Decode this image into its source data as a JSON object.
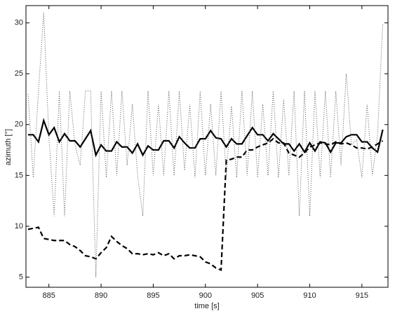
{
  "chart_data": {
    "type": "line",
    "xlabel": "time [s]",
    "ylabel": "azimuth [°]",
    "x": [
      883,
      883.5,
      884,
      884.5,
      885,
      885.5,
      886,
      886.5,
      887,
      887.5,
      888,
      888.5,
      889,
      889.5,
      890,
      890.5,
      891,
      891.5,
      892,
      892.5,
      893,
      893.5,
      894,
      894.5,
      895,
      895.5,
      896,
      896.5,
      897,
      897.5,
      898,
      898.5,
      899,
      899.5,
      900,
      900.5,
      901,
      901.5,
      902,
      902.5,
      903,
      903.5,
      904,
      904.5,
      905,
      905.5,
      906,
      906.5,
      907,
      907.5,
      908,
      908.5,
      909,
      909.5,
      910,
      910.5,
      911,
      911.5,
      912,
      912.5,
      913,
      913.5,
      914,
      914.5,
      915,
      915.5,
      916,
      916.5,
      917
    ],
    "series": [
      {
        "color": "#000000",
        "style": "solid",
        "width": 2.2,
        "values": [
          19,
          19,
          18.3,
          20.4,
          19,
          19.7,
          18.3,
          19.1,
          18.4,
          18.4,
          17.8,
          18.6,
          19.4,
          17,
          18,
          17.4,
          17.4,
          18.3,
          17.8,
          17.8,
          17.2,
          18.1,
          17,
          17.9,
          17.5,
          17.5,
          18.4,
          18.4,
          17.7,
          18.8,
          18.2,
          17.7,
          17.7,
          18.6,
          18.6,
          19.4,
          18.7,
          18.6,
          17.8,
          18.6,
          18.1,
          18.1,
          18.9,
          19.7,
          19,
          19,
          18.4,
          19.1,
          18.6,
          18.1,
          18.1,
          17.4,
          18.1,
          17.3,
          18.2,
          17.4,
          18.3,
          18.2,
          17.3,
          18.2,
          18.2,
          18.8,
          19,
          19,
          18.3,
          18.3,
          17.7,
          17.3,
          19.5
        ]
      },
      {
        "color": "#000000",
        "style": "dashed",
        "width": 2.2,
        "values": [
          9.7,
          9.8,
          9.9,
          8.8,
          8.7,
          8.6,
          8.6,
          8.6,
          8.2,
          8,
          7.6,
          7.1,
          7,
          6.8,
          7.4,
          7.9,
          9,
          8.5,
          8.1,
          7.8,
          7.3,
          7.3,
          7.2,
          7.3,
          7.2,
          7.4,
          7.1,
          7.3,
          6.8,
          7.1,
          7.1,
          7.2,
          7.1,
          7,
          6.5,
          6.3,
          5.9,
          5.7,
          16.5,
          16.6,
          16.8,
          16.8,
          17.5,
          17.5,
          17.8,
          18,
          18.2,
          18.6,
          18.2,
          18.2,
          17.2,
          17,
          16.8,
          17.2,
          17.8,
          18,
          18.2,
          18.1,
          18,
          18.3,
          18.1,
          18.2,
          18,
          17.7,
          17.7,
          17.6,
          17.8,
          18.1,
          18.4
        ]
      },
      {
        "color": "#555555",
        "style": "dotted",
        "width": 1,
        "values": [
          23,
          14.8,
          23.3,
          31,
          18.8,
          11,
          23.3,
          11,
          23.3,
          18,
          16,
          23.3,
          23.3,
          5,
          23.3,
          14.8,
          23.3,
          15,
          23.3,
          16,
          22,
          15,
          11,
          23.3,
          15,
          22,
          15,
          23.3,
          15,
          23.3,
          15.5,
          22,
          14.8,
          23.3,
          15,
          22,
          15,
          23.3,
          15,
          21.8,
          14.8,
          23.3,
          15,
          23.3,
          14.8,
          22,
          15,
          23.3,
          14.8,
          22.5,
          15,
          23.3,
          11,
          23.3,
          11,
          23.3,
          14.8,
          23.3,
          14.8,
          23.3,
          16,
          25,
          18,
          18.5,
          14.8,
          22,
          15,
          19,
          30
        ]
      }
    ],
    "xlim": [
      882.8,
      917.5
    ],
    "xticks": [
      885,
      890,
      895,
      900,
      905,
      910,
      915
    ],
    "ylim": [
      4,
      31.7
    ],
    "yticks": [
      5,
      10,
      15,
      20,
      25,
      30
    ]
  }
}
